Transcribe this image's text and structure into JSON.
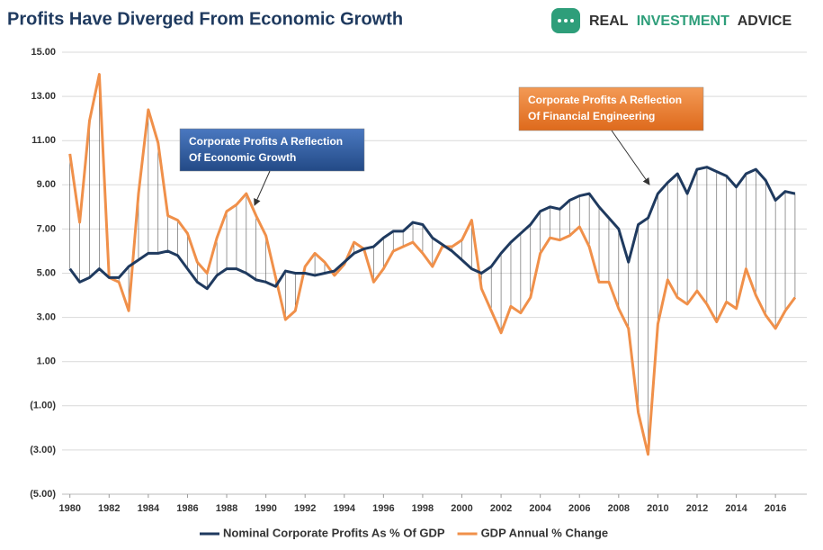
{
  "logo": [
    "REAL",
    "INVESTMENT",
    "ADVICE"
  ],
  "chart_data": {
    "type": "line",
    "title": "Profits Have Diverged From Economic Growth",
    "x": [
      1980.0,
      1980.5,
      1981.0,
      1981.5,
      1982.0,
      1982.5,
      1983.0,
      1983.5,
      1984.0,
      1984.5,
      1985.0,
      1985.5,
      1986.0,
      1986.5,
      1987.0,
      1987.5,
      1988.0,
      1988.5,
      1989.0,
      1989.5,
      1990.0,
      1990.5,
      1991.0,
      1991.5,
      1992.0,
      1992.5,
      1993.0,
      1993.5,
      1994.0,
      1994.5,
      1995.0,
      1995.5,
      1996.0,
      1996.5,
      1997.0,
      1997.5,
      1998.0,
      1998.5,
      1999.0,
      1999.5,
      2000.0,
      2000.5,
      2001.0,
      2001.5,
      2002.0,
      2002.5,
      2003.0,
      2003.5,
      2004.0,
      2004.5,
      2005.0,
      2005.5,
      2006.0,
      2006.5,
      2007.0,
      2007.5,
      2008.0,
      2008.5,
      2009.0,
      2009.5,
      2010.0,
      2010.5,
      2011.0,
      2011.5,
      2012.0,
      2012.5,
      2013.0,
      2013.5,
      2014.0,
      2014.5,
      2015.0,
      2015.5,
      2016.0,
      2016.5,
      2017.0
    ],
    "series": [
      {
        "name": "Nominal Corporate Profits As % Of GDP",
        "color": "#1f3a5f",
        "values": [
          5.2,
          4.6,
          4.8,
          5.2,
          4.8,
          4.8,
          5.3,
          5.6,
          5.9,
          5.9,
          6.0,
          5.8,
          5.2,
          4.6,
          4.3,
          4.9,
          5.2,
          5.2,
          5.0,
          4.7,
          4.6,
          4.4,
          5.1,
          5.0,
          5.0,
          4.9,
          5.0,
          5.1,
          5.5,
          5.9,
          6.1,
          6.2,
          6.6,
          6.9,
          6.9,
          7.3,
          7.2,
          6.6,
          6.3,
          6.0,
          5.6,
          5.2,
          5.0,
          5.3,
          5.9,
          6.4,
          6.8,
          7.2,
          7.8,
          8.0,
          7.9,
          8.3,
          8.5,
          8.6,
          8.0,
          7.5,
          7.0,
          5.5,
          7.2,
          7.5,
          8.6,
          9.1,
          9.5,
          8.6,
          9.7,
          9.8,
          9.6,
          9.4,
          8.9,
          9.5,
          9.7,
          9.2,
          8.3,
          8.7,
          8.6
        ]
      },
      {
        "name": "GDP Annual % Change",
        "color": "#f0904a",
        "values": [
          10.4,
          7.3,
          11.9,
          14.0,
          4.8,
          4.6,
          3.3,
          8.6,
          12.4,
          10.9,
          7.6,
          7.4,
          6.8,
          5.5,
          5.0,
          6.6,
          7.8,
          8.1,
          8.6,
          7.6,
          6.7,
          4.8,
          2.9,
          3.3,
          5.3,
          5.9,
          5.5,
          4.9,
          5.4,
          6.4,
          6.1,
          4.6,
          5.2,
          6.0,
          6.2,
          6.4,
          5.9,
          5.3,
          6.2,
          6.2,
          6.5,
          7.4,
          4.3,
          3.3,
          2.3,
          3.5,
          3.2,
          3.9,
          5.9,
          6.6,
          6.5,
          6.7,
          7.1,
          6.2,
          4.6,
          4.6,
          3.4,
          2.5,
          -1.3,
          -3.2,
          2.7,
          4.7,
          3.9,
          3.6,
          4.2,
          3.6,
          2.8,
          3.7,
          3.4,
          5.2,
          4.0,
          3.1,
          2.5,
          3.3,
          3.9
        ]
      }
    ],
    "xlim": [
      1979.6,
      2017.6
    ],
    "xticks": [
      1980,
      1982,
      1984,
      1986,
      1988,
      1990,
      1992,
      1994,
      1996,
      1998,
      2000,
      2002,
      2004,
      2006,
      2008,
      2010,
      2012,
      2014,
      2016
    ],
    "ylim": [
      -5,
      15
    ],
    "yticks": [
      {
        "value": 15,
        "label": "15.00"
      },
      {
        "value": 13,
        "label": "13.00"
      },
      {
        "value": 11,
        "label": "11.00"
      },
      {
        "value": 9,
        "label": "9.00"
      },
      {
        "value": 7,
        "label": "7.00"
      },
      {
        "value": 5,
        "label": "5.00"
      },
      {
        "value": 3,
        "label": "3.00"
      },
      {
        "value": 1,
        "label": "1.00"
      },
      {
        "value": -1,
        "label": "(1.00)"
      },
      {
        "value": -3,
        "label": "(3.00)"
      },
      {
        "value": -5,
        "label": "(5.00)"
      }
    ],
    "grid": true,
    "legend": "bottom",
    "annotations": [
      {
        "lines": [
          "Corporate Profits A Reflection",
          "Of Economic Growth"
        ],
        "color": "#2f5b9a"
      },
      {
        "lines": [
          "Corporate Profits A Reflection",
          "Of Financial Engineering"
        ],
        "color": "#e8772e"
      }
    ]
  }
}
